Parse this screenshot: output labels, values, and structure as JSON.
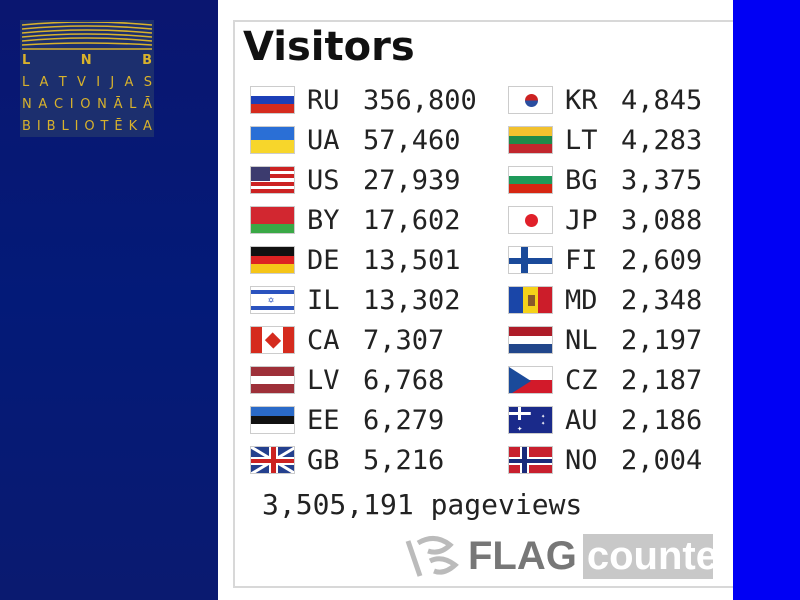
{
  "logo": {
    "abbr": [
      "L",
      "N",
      "B"
    ],
    "lines": [
      "LATVIJAS",
      "NACIONĀLĀ",
      "BIBLIOTĒKA"
    ],
    "color": "#d8b22c"
  },
  "widget": {
    "title": "Visitors",
    "left": [
      {
        "code": "RU",
        "count": "356,800",
        "flag": [
          "#fff",
          "#1c3fb8",
          "#d52b1e"
        ]
      },
      {
        "code": "UA",
        "count": "57,460",
        "flag": [
          "#2a6fd6",
          "#f7d62b"
        ]
      },
      {
        "code": "US",
        "count": "27,939",
        "flag": "us"
      },
      {
        "code": "BY",
        "count": "17,602",
        "flag": [
          "#d22730",
          "#d22730",
          "#3aa846"
        ]
      },
      {
        "code": "DE",
        "count": "13,501",
        "flag": [
          "#111",
          "#d22",
          "#f5c518"
        ]
      },
      {
        "code": "IL",
        "count": "13,302",
        "flag": "il"
      },
      {
        "code": "CA",
        "count": "7,307",
        "flag": "ca"
      },
      {
        "code": "LV",
        "count": "6,768",
        "flag": [
          "#9e3039",
          "#fff",
          "#9e3039"
        ]
      },
      {
        "code": "EE",
        "count": "6,279",
        "flag": [
          "#2a6ac8",
          "#111",
          "#fff"
        ]
      },
      {
        "code": "GB",
        "count": "5,216",
        "flag": "gb"
      }
    ],
    "right": [
      {
        "code": "KR",
        "count": "4,845",
        "flag": "kr"
      },
      {
        "code": "LT",
        "count": "4,283",
        "flag": [
          "#f2c12e",
          "#1e8a4a",
          "#c1272d"
        ]
      },
      {
        "code": "BG",
        "count": "3,375",
        "flag": [
          "#fff",
          "#1e9a5a",
          "#d62612"
        ]
      },
      {
        "code": "JP",
        "count": "3,088",
        "flag": "jp"
      },
      {
        "code": "FI",
        "count": "2,609",
        "flag": "fi"
      },
      {
        "code": "MD",
        "count": "2,348",
        "flag": "md"
      },
      {
        "code": "NL",
        "count": "2,197",
        "flag": [
          "#ae1c28",
          "#fff",
          "#21468b"
        ]
      },
      {
        "code": "CZ",
        "count": "2,187",
        "flag": "cz"
      },
      {
        "code": "AU",
        "count": "2,186",
        "flag": "au"
      },
      {
        "code": "NO",
        "count": "2,004",
        "flag": "no"
      }
    ],
    "pageviews": "3,505,191 pageviews",
    "brand": {
      "flag": "FLAG",
      "counter": "counter"
    }
  },
  "colors": {
    "left_panel": "#0a1670",
    "right_strip": "#0000f4"
  }
}
